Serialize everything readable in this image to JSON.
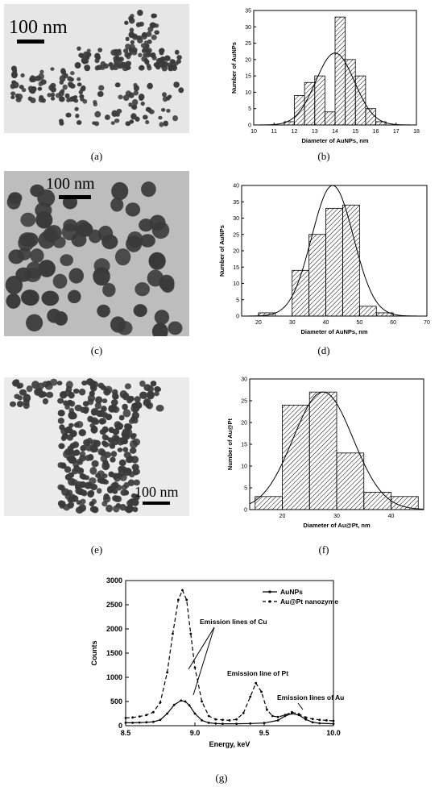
{
  "panel_labels": {
    "a": "(a)",
    "b": "(b)",
    "c": "(c)",
    "d": "(d)",
    "e": "(e)",
    "f": "(f)",
    "g": "(g)"
  },
  "scale_bars": {
    "a": "100 nm",
    "c": "100 nm",
    "e": "100 nm"
  },
  "colors": {
    "tem_bg_a": "#e6e6e6",
    "tem_bg_c": "#bdbdbd",
    "tem_bg_e": "#ebebeb",
    "particle": "#3a3a3a",
    "hatch": "#000000"
  },
  "chart_data": [
    {
      "id": "b",
      "type": "bar",
      "xlabel": "Diameter of AuNPs, nm",
      "ylabel": "Number of AuNPs",
      "xlim": [
        10,
        18
      ],
      "ylim": [
        0,
        35
      ],
      "xticks": [
        "10",
        "11",
        "12",
        "13",
        "14",
        "15",
        "16",
        "17",
        "18"
      ],
      "yticks": [
        "0",
        "5",
        "10",
        "15",
        "20",
        "25",
        "30",
        "35"
      ],
      "bin_width": 0.5,
      "bin_starts": [
        11.5,
        12,
        12.5,
        13,
        13.5,
        14,
        14.5,
        15,
        15.5,
        16
      ],
      "values": [
        1,
        9,
        13,
        15,
        4,
        33,
        20,
        15,
        5,
        1
      ],
      "fit": {
        "type": "gaussian",
        "mean": 14.0,
        "sigma": 0.95,
        "peak": 22
      }
    },
    {
      "id": "d",
      "type": "bar",
      "xlabel": "Diameter of AuNPs, nm",
      "ylabel": "Number of AuNPs",
      "xlim": [
        15,
        70
      ],
      "ylim": [
        0,
        40
      ],
      "xticks": [
        "20",
        "30",
        "40",
        "50",
        "60",
        "70"
      ],
      "yticks": [
        "0",
        "5",
        "10",
        "15",
        "20",
        "25",
        "30",
        "35",
        "40"
      ],
      "bin_width": 5,
      "bin_starts": [
        20,
        30,
        35,
        40,
        45,
        50,
        55
      ],
      "values": [
        1,
        14,
        25,
        33,
        34,
        3,
        1
      ],
      "fit": {
        "type": "gaussian",
        "mean": 42,
        "sigma": 6.2,
        "peak": 40
      }
    },
    {
      "id": "f",
      "type": "bar",
      "xlabel": "Diameter of Au@Pt, nm",
      "ylabel": "Number of Au@Pt",
      "xlim": [
        14,
        46
      ],
      "ylim": [
        0,
        30
      ],
      "xticks": [
        "20",
        "30",
        "40"
      ],
      "yticks": [
        "0",
        "5",
        "10",
        "15",
        "20",
        "25",
        "30"
      ],
      "bin_width": 5,
      "bin_starts": [
        15,
        20,
        25,
        30,
        35,
        40
      ],
      "values": [
        3,
        24,
        27,
        13,
        4,
        3
      ],
      "fit": {
        "type": "gaussian",
        "mean": 27.5,
        "sigma": 5.5,
        "peak": 27
      }
    },
    {
      "id": "g",
      "type": "line",
      "xlabel": "Energy, keV",
      "ylabel": "Counts",
      "xlim": [
        8.5,
        10.0
      ],
      "ylim": [
        0,
        3000
      ],
      "xticks": [
        "8.5",
        "9.0",
        "9.5",
        "10.0"
      ],
      "yticks": [
        "0",
        "500",
        "1000",
        "1500",
        "2000",
        "2500",
        "3000"
      ],
      "series": [
        {
          "name": "AuNPs",
          "style": "solid",
          "x": [
            8.5,
            8.55,
            8.6,
            8.65,
            8.7,
            8.75,
            8.8,
            8.85,
            8.9,
            8.93,
            8.96,
            9.0,
            9.05,
            9.1,
            9.15,
            9.2,
            9.3,
            9.4,
            9.5,
            9.6,
            9.65,
            9.7,
            9.75,
            9.8,
            9.85,
            9.9,
            10.0
          ],
          "y": [
            60,
            60,
            65,
            70,
            80,
            120,
            250,
            430,
            520,
            500,
            420,
            250,
            110,
            60,
            45,
            40,
            40,
            45,
            55,
            110,
            200,
            250,
            220,
            130,
            70,
            50,
            40
          ]
        },
        {
          "name": "Au@Pt nanozyme",
          "style": "dashed",
          "x": [
            8.5,
            8.55,
            8.6,
            8.65,
            8.7,
            8.75,
            8.8,
            8.84,
            8.88,
            8.91,
            8.94,
            8.97,
            9.0,
            9.05,
            9.1,
            9.15,
            9.2,
            9.25,
            9.3,
            9.35,
            9.4,
            9.44,
            9.48,
            9.52,
            9.56,
            9.6,
            9.65,
            9.7,
            9.75,
            9.8,
            9.85,
            9.9,
            9.95,
            10.0
          ],
          "y": [
            160,
            170,
            190,
            220,
            280,
            480,
            1100,
            1900,
            2600,
            2800,
            2600,
            1900,
            1200,
            500,
            200,
            130,
            120,
            110,
            130,
            260,
            600,
            880,
            700,
            330,
            200,
            180,
            220,
            280,
            240,
            170,
            140,
            120,
            110,
            100
          ]
        }
      ],
      "legend": {
        "position": "top-right"
      },
      "annotations": [
        "Emission lines of Cu",
        "Emission line of Pt",
        "Emission lines of Au"
      ]
    }
  ]
}
